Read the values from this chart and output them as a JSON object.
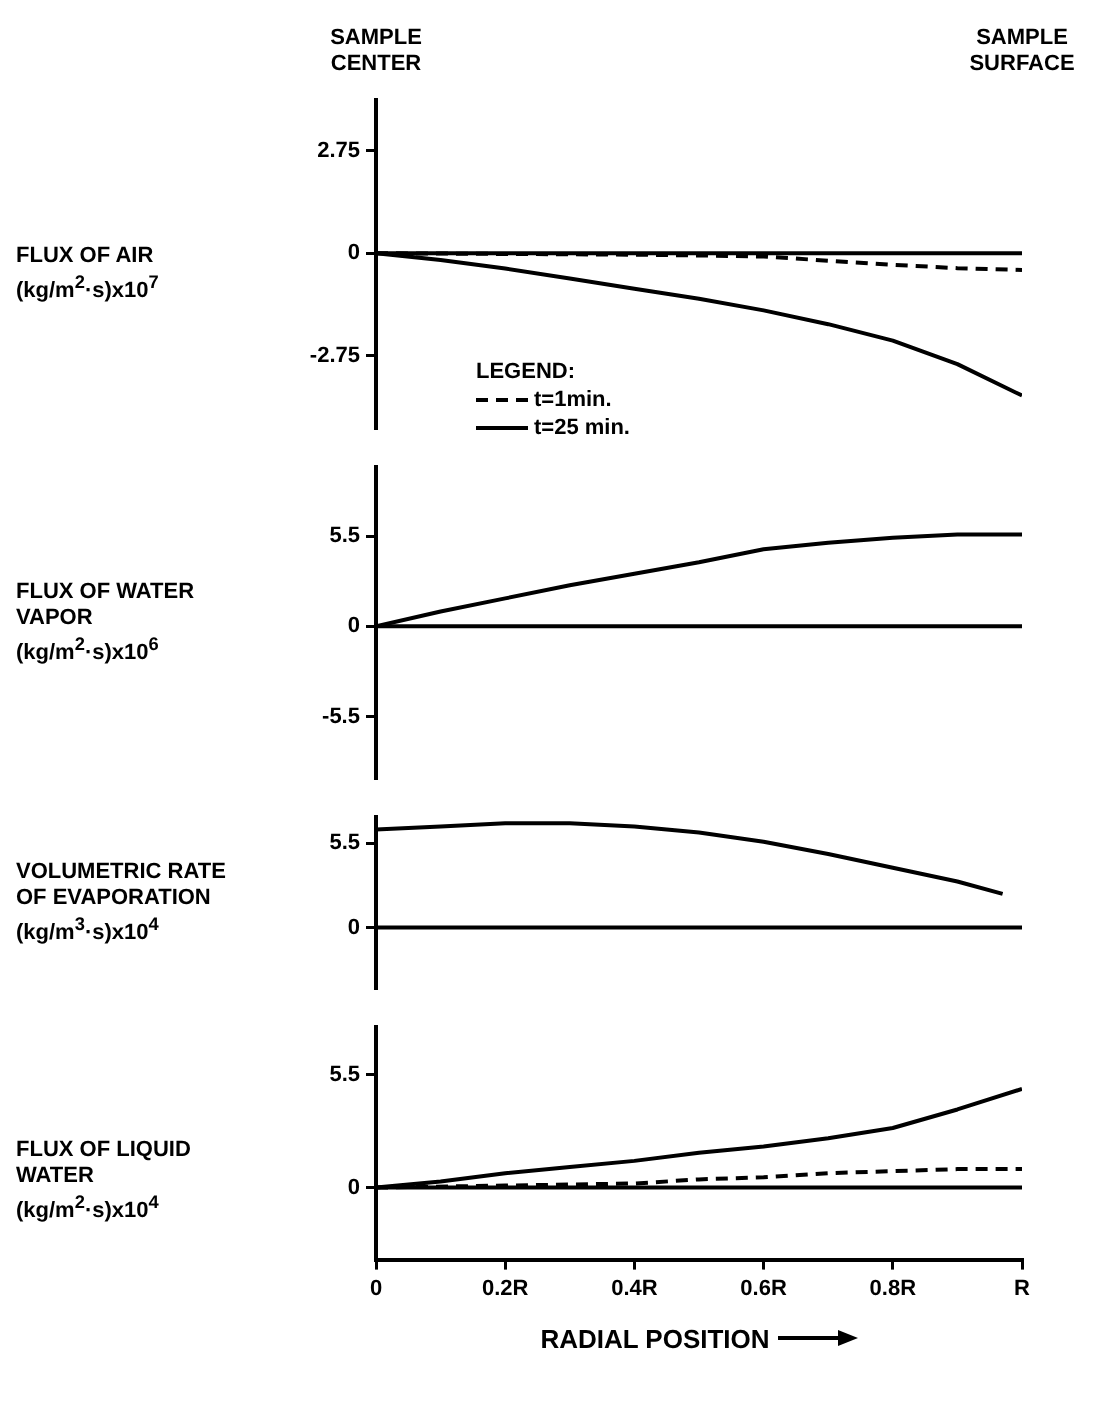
{
  "chart_data": [
    {
      "type": "line",
      "ylabel": "FLUX OF AIR (kg/m$^{2}$·s)x10$^{7}$",
      "legend_title": "LEGEND:",
      "legend": "bottom left",
      "marker": "none",
      "grid": false,
      "tick_labels": "y",
      "annotations": [
        "SAMPLE CENTER",
        "SAMPLE SURFACE"
      ],
      "xlim": [
        0,
        1
      ],
      "ylim": [
        -4.7,
        4.1
      ],
      "yticks": [
        -2.75,
        0,
        2.75
      ],
      "ref_lines": [
        {
          "axis": "y",
          "value": 0,
          "color": "#000000"
        }
      ],
      "series": [
        {
          "name": "t=1min.",
          "color": "#000000",
          "line_style": "dashed",
          "x": [
            0,
            0.2,
            0.4,
            0.5,
            0.6,
            0.7,
            0.8,
            0.9,
            1
          ],
          "values": [
            0,
            -0.02,
            -0.04,
            -0.06,
            -0.09,
            -0.2,
            -0.31,
            -0.4,
            -0.45
          ]
        },
        {
          "name": "t=25 min.",
          "color": "#000000",
          "line_style": "solid",
          "x": [
            0,
            0.1,
            0.2,
            0.3,
            0.4,
            0.5,
            0.6,
            0.7,
            0.8,
            0.9,
            1
          ],
          "values": [
            0,
            -0.18,
            -0.41,
            -0.68,
            -0.95,
            -1.22,
            -1.53,
            -1.9,
            -2.34,
            -2.97,
            -3.81
          ]
        }
      ]
    },
    {
      "type": "line",
      "ylabel": "FLUX OF WATER VAPOR (kg/m$^{2}$·s)x10$^{6}$",
      "marker": "none",
      "grid": false,
      "tick_labels": "y",
      "xlim": [
        0,
        1
      ],
      "ylim": [
        -9.3,
        9.7
      ],
      "yticks": [
        -5.5,
        0,
        5.5
      ],
      "ref_lines": [
        {
          "axis": "y",
          "value": 0,
          "color": "#000000"
        }
      ],
      "series": [
        {
          "color": "#000000",
          "line_style": "solid",
          "x": [
            0,
            0.1,
            0.2,
            0.3,
            0.4,
            0.5,
            0.6,
            0.7,
            0.8,
            0.9,
            1
          ],
          "values": [
            0,
            0.9,
            1.7,
            2.5,
            3.2,
            3.9,
            4.7,
            5.1,
            5.4,
            5.6,
            5.6
          ]
        }
      ]
    },
    {
      "type": "line",
      "ylabel": "VOLUMETRIC RATE OF EVAPORATION (kg/m$^{3}$·s)x10$^{4}$",
      "marker": "none",
      "grid": false,
      "tick_labels": "y",
      "xlim": [
        0,
        1
      ],
      "ylim": [
        -4,
        7.2
      ],
      "yticks": [
        0,
        5.5
      ],
      "ref_lines": [
        {
          "axis": "y",
          "value": 0,
          "color": "#000000"
        }
      ],
      "series": [
        {
          "color": "#000000",
          "line_style": "solid",
          "x": [
            0,
            0.1,
            0.2,
            0.3,
            0.4,
            0.5,
            0.6,
            0.7,
            0.8,
            0.9,
            0.97
          ],
          "values": [
            6.4,
            6.6,
            6.8,
            6.8,
            6.6,
            6.2,
            5.6,
            4.8,
            3.9,
            3.0,
            2.2
          ]
        }
      ]
    },
    {
      "type": "line",
      "ylabel": "FLUX OF LIQUID WATER (kg/m$^{2}$·s)x10$^{4}$",
      "xlabel": "RADIAL POSITION",
      "marker": "none",
      "grid": false,
      "xlim": [
        0,
        1
      ],
      "xticks": [
        0,
        {
          "value": 0.2,
          "label": "0.2R"
        },
        {
          "value": 0.4,
          "label": "0.4R"
        },
        {
          "value": 0.6,
          "label": "0.6R"
        },
        {
          "value": 0.8,
          "label": "0.8R"
        },
        {
          "value": 1,
          "label": "R"
        }
      ],
      "ylim": [
        -3.5,
        7.8
      ],
      "yticks": [
        0,
        5.5
      ],
      "ref_lines": [
        {
          "axis": "y",
          "value": 0,
          "color": "#000000"
        }
      ],
      "series": [
        {
          "color": "#000000",
          "line_style": "dashed",
          "x": [
            0,
            0.2,
            0.4,
            0.5,
            0.6,
            0.7,
            0.8,
            0.9,
            1
          ],
          "values": [
            0,
            0.1,
            0.2,
            0.4,
            0.5,
            0.7,
            0.8,
            0.9,
            0.9
          ]
        },
        {
          "color": "#000000",
          "line_style": "solid",
          "x": [
            0,
            0.1,
            0.2,
            0.3,
            0.4,
            0.5,
            0.6,
            0.7,
            0.8,
            0.9,
            1
          ],
          "values": [
            0,
            0.3,
            0.7,
            1.0,
            1.3,
            1.7,
            2.0,
            2.4,
            2.9,
            3.8,
            4.8
          ]
        }
      ]
    }
  ]
}
